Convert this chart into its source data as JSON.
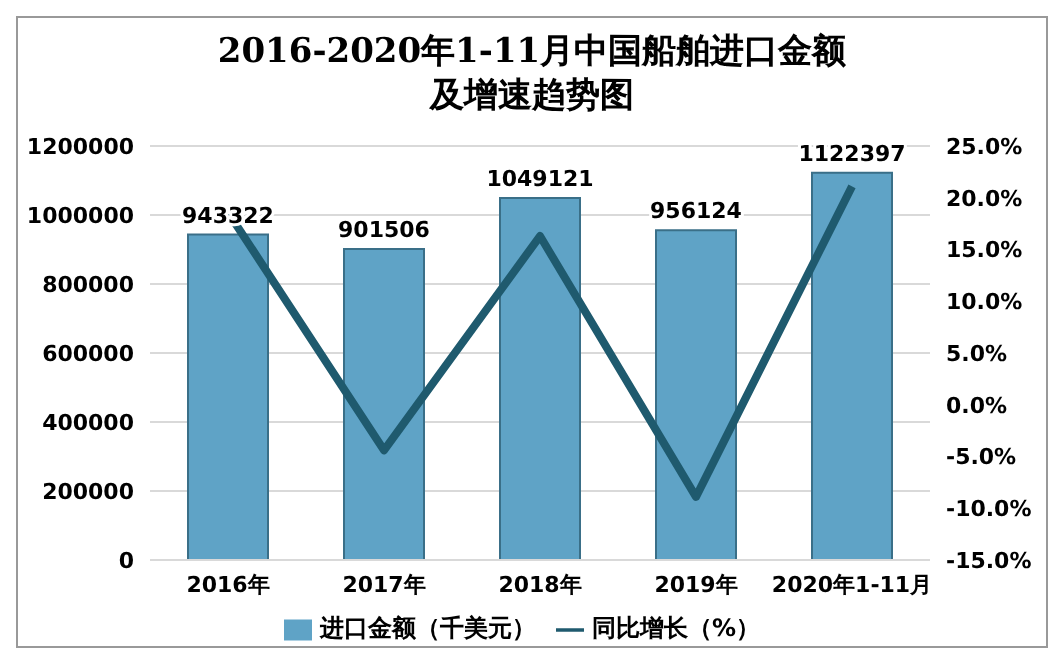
{
  "chart_data": {
    "type": "bar",
    "title": "2016-2020年1-11月中国船舶进口金额及增速趋势图",
    "categories": [
      "2016年",
      "2017年",
      "2018年",
      "2019年",
      "2020年1-11月"
    ],
    "series": [
      {
        "name": "进口金额（千美元）",
        "color": "#5fa3c6",
        "values": [
          943322,
          901506,
          1049121,
          956124,
          1122397
        ]
      },
      {
        "name": "同比增长（%）",
        "type": "line",
        "axis": "y2",
        "color": "#1f5a6e",
        "values": [
          18.6,
          -4.4,
          16.3,
          -8.9,
          21.1
        ]
      }
    ],
    "ylim": [
      0,
      1200000
    ],
    "yticks": [
      0,
      200000,
      400000,
      600000,
      800000,
      1000000,
      1200000
    ],
    "y2lim": [
      -15,
      25
    ],
    "y2ticks": [
      {
        "value": -15,
        "label": "-15.0%"
      },
      {
        "value": -10,
        "label": "-10.0%"
      },
      {
        "value": -5,
        "label": "-5.0%"
      },
      {
        "value": 0,
        "label": "0.0%"
      },
      {
        "value": 5,
        "label": "5.0%"
      },
      {
        "value": 10,
        "label": "10.0%"
      },
      {
        "value": 15,
        "label": "15.0%"
      },
      {
        "value": 20,
        "label": "20.0%"
      },
      {
        "value": 25,
        "label": "25.0%"
      }
    ],
    "value_labels": [
      "943322",
      "901506",
      "1049121",
      "956124",
      "1122397"
    ],
    "grid": "y",
    "legend": "bottom",
    "marker": "none"
  }
}
